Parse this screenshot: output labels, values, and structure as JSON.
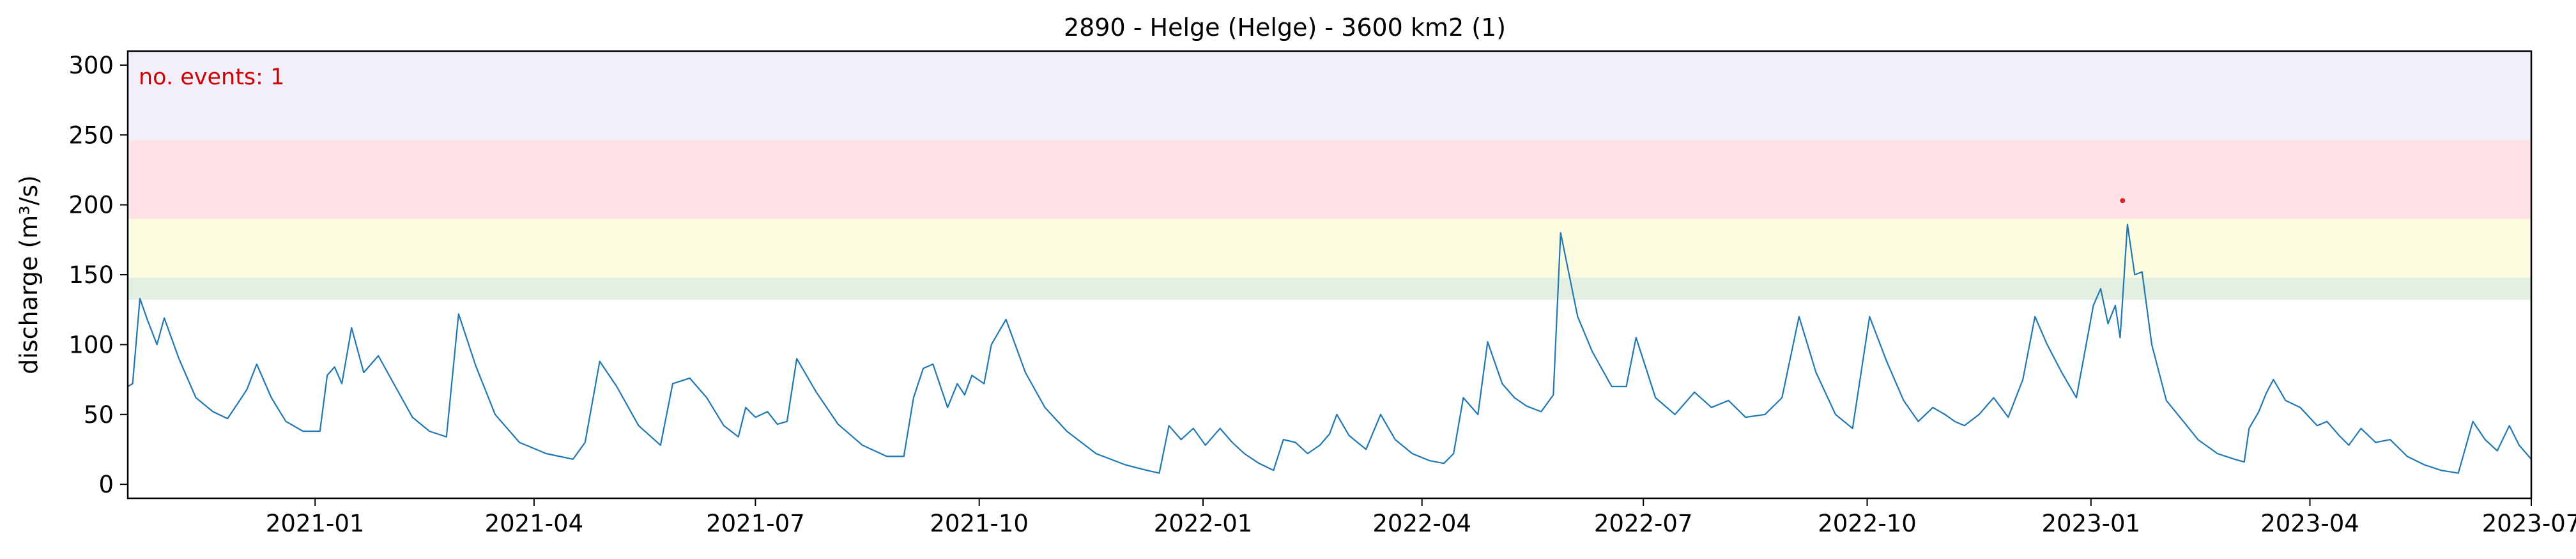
{
  "chart_data": {
    "type": "line",
    "title": "2890 - Helge (Helge) - 3600 km2 (1)",
    "xlabel": "",
    "ylabel": "discharge (m³/s)",
    "annotation": "no. events: 1",
    "xlim": [
      "2020-10-16",
      "2023-07-01"
    ],
    "ylim": [
      -10,
      310
    ],
    "y_ticks": [
      0,
      50,
      100,
      150,
      200,
      250,
      300
    ],
    "x_ticks": [
      {
        "date": "2021-01-01",
        "label": "2021-01"
      },
      {
        "date": "2021-04-01",
        "label": "2021-04"
      },
      {
        "date": "2021-07-01",
        "label": "2021-07"
      },
      {
        "date": "2021-10-01",
        "label": "2021-10"
      },
      {
        "date": "2022-01-01",
        "label": "2022-01"
      },
      {
        "date": "2022-04-01",
        "label": "2022-04"
      },
      {
        "date": "2022-07-01",
        "label": "2022-07"
      },
      {
        "date": "2022-10-01",
        "label": "2022-10"
      },
      {
        "date": "2023-01-01",
        "label": "2023-01"
      },
      {
        "date": "2023-04-01",
        "label": "2023-04"
      },
      {
        "date": "2023-07-01",
        "label": "2023-07"
      }
    ],
    "threshold_bands": [
      {
        "from": 132,
        "to": 148,
        "color": "#e2efe2"
      },
      {
        "from": 148,
        "to": 190,
        "color": "#fdfde2"
      },
      {
        "from": 190,
        "to": 246,
        "color": "#ffe2e5"
      },
      {
        "from": 246,
        "to": 310,
        "color": "#f2eefa"
      }
    ],
    "grid": false,
    "line_color": "#1f77b4",
    "event_color": "#d62728",
    "events": [
      {
        "x": "2023-01-14",
        "y": 203
      }
    ],
    "series": [
      {
        "points": [
          [
            "2020-10-16",
            70
          ],
          [
            "2020-10-18",
            72
          ],
          [
            "2020-10-21",
            133
          ],
          [
            "2020-10-24",
            118
          ],
          [
            "2020-10-28",
            100
          ],
          [
            "2020-10-31",
            119
          ],
          [
            "2020-11-06",
            90
          ],
          [
            "2020-11-13",
            62
          ],
          [
            "2020-11-20",
            52
          ],
          [
            "2020-11-26",
            47
          ],
          [
            "2020-12-01",
            60
          ],
          [
            "2020-12-04",
            68
          ],
          [
            "2020-12-08",
            86
          ],
          [
            "2020-12-14",
            62
          ],
          [
            "2020-12-20",
            45
          ],
          [
            "2020-12-27",
            38
          ],
          [
            "2021-01-03",
            38
          ],
          [
            "2021-01-06",
            78
          ],
          [
            "2021-01-09",
            84
          ],
          [
            "2021-01-12",
            72
          ],
          [
            "2021-01-16",
            112
          ],
          [
            "2021-01-21",
            80
          ],
          [
            "2021-01-27",
            92
          ],
          [
            "2021-02-03",
            70
          ],
          [
            "2021-02-10",
            48
          ],
          [
            "2021-02-17",
            38
          ],
          [
            "2021-02-24",
            34
          ],
          [
            "2021-03-01",
            122
          ],
          [
            "2021-03-08",
            85
          ],
          [
            "2021-03-16",
            50
          ],
          [
            "2021-03-26",
            30
          ],
          [
            "2021-04-06",
            22
          ],
          [
            "2021-04-17",
            18
          ],
          [
            "2021-04-22",
            30
          ],
          [
            "2021-04-28",
            88
          ],
          [
            "2021-05-05",
            70
          ],
          [
            "2021-05-14",
            42
          ],
          [
            "2021-05-23",
            28
          ],
          [
            "2021-05-28",
            72
          ],
          [
            "2021-06-04",
            76
          ],
          [
            "2021-06-11",
            62
          ],
          [
            "2021-06-18",
            42
          ],
          [
            "2021-06-24",
            34
          ],
          [
            "2021-06-27",
            55
          ],
          [
            "2021-07-01",
            48
          ],
          [
            "2021-07-06",
            52
          ],
          [
            "2021-07-10",
            43
          ],
          [
            "2021-07-14",
            45
          ],
          [
            "2021-07-18",
            90
          ],
          [
            "2021-07-26",
            66
          ],
          [
            "2021-08-04",
            43
          ],
          [
            "2021-08-14",
            28
          ],
          [
            "2021-08-24",
            20
          ],
          [
            "2021-08-31",
            20
          ],
          [
            "2021-09-04",
            62
          ],
          [
            "2021-09-08",
            83
          ],
          [
            "2021-09-12",
            86
          ],
          [
            "2021-09-18",
            55
          ],
          [
            "2021-09-22",
            72
          ],
          [
            "2021-09-25",
            64
          ],
          [
            "2021-09-28",
            78
          ],
          [
            "2021-10-03",
            72
          ],
          [
            "2021-10-06",
            100
          ],
          [
            "2021-10-12",
            118
          ],
          [
            "2021-10-20",
            80
          ],
          [
            "2021-10-28",
            55
          ],
          [
            "2021-11-06",
            38
          ],
          [
            "2021-11-18",
            22
          ],
          [
            "2021-11-30",
            14
          ],
          [
            "2021-12-09",
            10
          ],
          [
            "2021-12-14",
            8
          ],
          [
            "2021-12-18",
            42
          ],
          [
            "2021-12-23",
            32
          ],
          [
            "2021-12-28",
            40
          ],
          [
            "2022-01-02",
            28
          ],
          [
            "2022-01-08",
            40
          ],
          [
            "2022-01-13",
            30
          ],
          [
            "2022-01-18",
            22
          ],
          [
            "2022-01-24",
            15
          ],
          [
            "2022-01-30",
            10
          ],
          [
            "2022-02-03",
            32
          ],
          [
            "2022-02-08",
            30
          ],
          [
            "2022-02-13",
            22
          ],
          [
            "2022-02-18",
            28
          ],
          [
            "2022-02-22",
            36
          ],
          [
            "2022-02-25",
            50
          ],
          [
            "2022-03-02",
            35
          ],
          [
            "2022-03-09",
            25
          ],
          [
            "2022-03-15",
            50
          ],
          [
            "2022-03-21",
            32
          ],
          [
            "2022-03-28",
            22
          ],
          [
            "2022-04-04",
            17
          ],
          [
            "2022-04-10",
            15
          ],
          [
            "2022-04-14",
            22
          ],
          [
            "2022-04-18",
            62
          ],
          [
            "2022-04-24",
            50
          ],
          [
            "2022-04-28",
            102
          ],
          [
            "2022-05-04",
            72
          ],
          [
            "2022-05-09",
            62
          ],
          [
            "2022-05-14",
            56
          ],
          [
            "2022-05-20",
            52
          ],
          [
            "2022-05-25",
            64
          ],
          [
            "2022-05-28",
            180
          ],
          [
            "2022-06-04",
            120
          ],
          [
            "2022-06-10",
            95
          ],
          [
            "2022-06-18",
            70
          ],
          [
            "2022-06-24",
            70
          ],
          [
            "2022-06-28",
            105
          ],
          [
            "2022-07-06",
            62
          ],
          [
            "2022-07-14",
            50
          ],
          [
            "2022-07-22",
            66
          ],
          [
            "2022-07-29",
            55
          ],
          [
            "2022-08-05",
            60
          ],
          [
            "2022-08-12",
            48
          ],
          [
            "2022-08-20",
            50
          ],
          [
            "2022-08-27",
            62
          ],
          [
            "2022-09-03",
            120
          ],
          [
            "2022-09-10",
            80
          ],
          [
            "2022-09-18",
            50
          ],
          [
            "2022-09-25",
            40
          ],
          [
            "2022-10-02",
            120
          ],
          [
            "2022-10-09",
            88
          ],
          [
            "2022-10-16",
            60
          ],
          [
            "2022-10-22",
            45
          ],
          [
            "2022-10-28",
            55
          ],
          [
            "2022-11-02",
            50
          ],
          [
            "2022-11-06",
            45
          ],
          [
            "2022-11-10",
            42
          ],
          [
            "2022-11-16",
            50
          ],
          [
            "2022-11-22",
            62
          ],
          [
            "2022-11-28",
            48
          ],
          [
            "2022-12-04",
            75
          ],
          [
            "2022-12-09",
            120
          ],
          [
            "2022-12-14",
            100
          ],
          [
            "2022-12-20",
            80
          ],
          [
            "2022-12-26",
            62
          ],
          [
            "2023-01-02",
            128
          ],
          [
            "2023-01-05",
            140
          ],
          [
            "2023-01-08",
            115
          ],
          [
            "2023-01-11",
            128
          ],
          [
            "2023-01-13",
            105
          ],
          [
            "2023-01-16",
            186
          ],
          [
            "2023-01-19",
            150
          ],
          [
            "2023-01-22",
            152
          ],
          [
            "2023-01-26",
            100
          ],
          [
            "2023-02-01",
            60
          ],
          [
            "2023-02-08",
            45
          ],
          [
            "2023-02-14",
            32
          ],
          [
            "2023-02-22",
            22
          ],
          [
            "2023-03-01",
            18
          ],
          [
            "2023-03-05",
            16
          ],
          [
            "2023-03-07",
            40
          ],
          [
            "2023-03-11",
            52
          ],
          [
            "2023-03-14",
            65
          ],
          [
            "2023-03-17",
            75
          ],
          [
            "2023-03-22",
            60
          ],
          [
            "2023-03-28",
            55
          ],
          [
            "2023-04-04",
            42
          ],
          [
            "2023-04-08",
            45
          ],
          [
            "2023-04-13",
            35
          ],
          [
            "2023-04-17",
            28
          ],
          [
            "2023-04-22",
            40
          ],
          [
            "2023-04-28",
            30
          ],
          [
            "2023-05-04",
            32
          ],
          [
            "2023-05-11",
            20
          ],
          [
            "2023-05-18",
            14
          ],
          [
            "2023-05-25",
            10
          ],
          [
            "2023-06-01",
            8
          ],
          [
            "2023-06-07",
            45
          ],
          [
            "2023-06-12",
            32
          ],
          [
            "2023-06-17",
            24
          ],
          [
            "2023-06-22",
            42
          ],
          [
            "2023-06-26",
            28
          ],
          [
            "2023-07-01",
            18
          ]
        ]
      }
    ]
  }
}
